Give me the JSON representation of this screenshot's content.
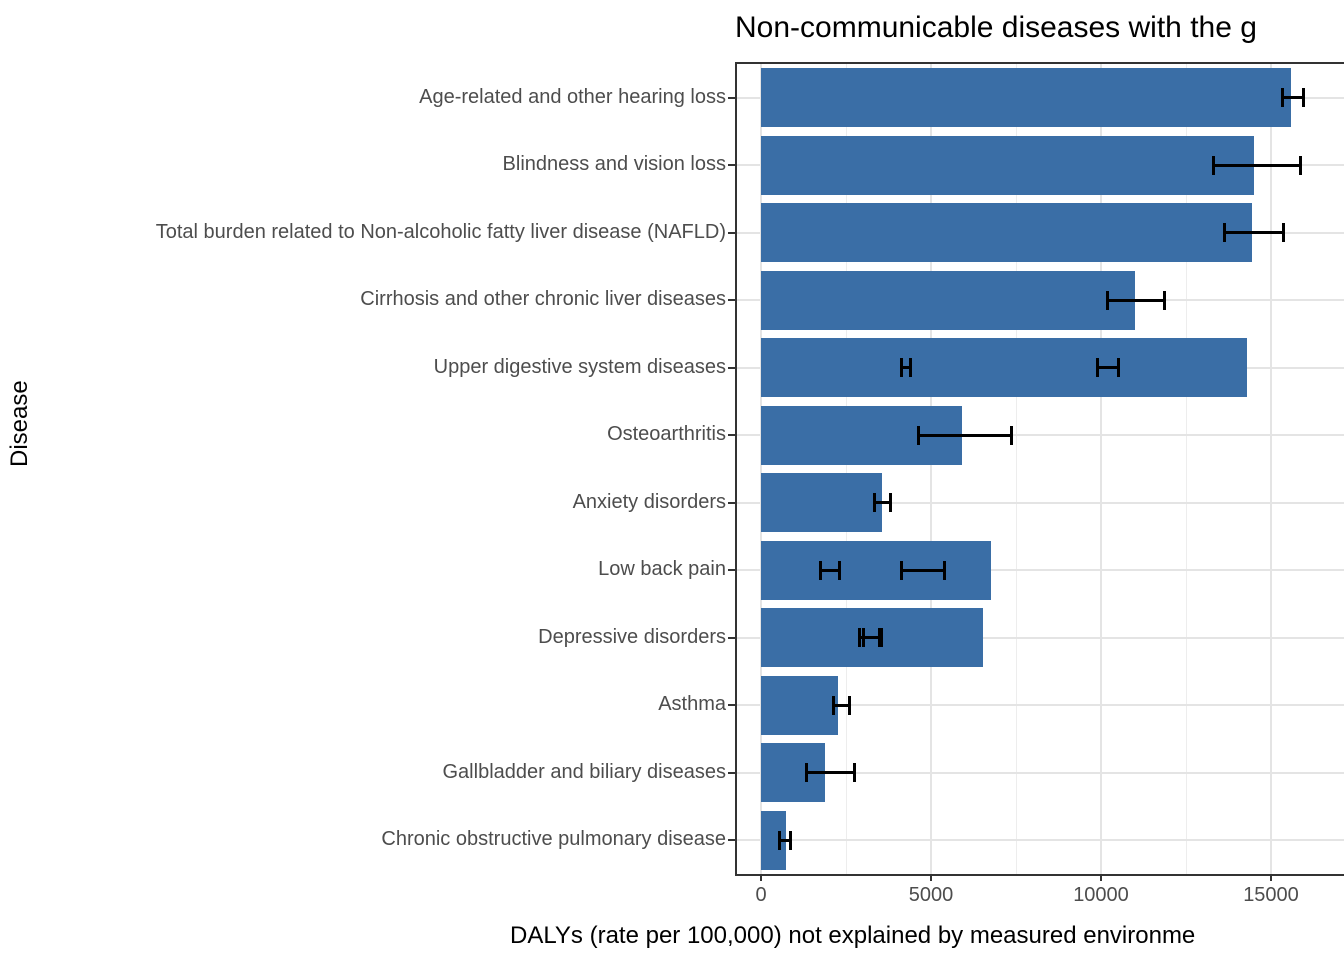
{
  "chart_data": {
    "type": "bar",
    "orientation": "horizontal",
    "title": "Non-communicable diseases with the g",
    "xlabel": "DALYs (rate per 100,000) not explained by measured environme",
    "ylabel": "Disease",
    "x_ticks": [
      0,
      5000,
      10000,
      15000
    ],
    "x_minor_gridlines": [
      2500,
      7500,
      12500,
      17500
    ],
    "xlim": [
      0,
      17500
    ],
    "grid": "major and minor vertical, major horizontal at category centers",
    "legend": "none",
    "bar_color": "#3a6ea6",
    "error_bar_color": "#000000",
    "categories": [
      "Age-related and other hearing loss",
      "Blindness and vision loss",
      "Total burden related to Non-alcoholic fatty liver disease (NAFLD)",
      "Cirrhosis and other chronic liver diseases",
      "Upper digestive system diseases",
      "Osteoarthritis",
      "Anxiety disorders",
      "Low back pain",
      "Depressive disorders",
      "Asthma",
      "Gallbladder and biliary diseases",
      "Chronic obstructive pulmonary disease"
    ],
    "values": [
      15600,
      14500,
      14450,
      11000,
      14300,
      5900,
      3560,
      6760,
      6530,
      2260,
      1880,
      740
    ],
    "error_bars": [
      [
        [
          15300,
          16000
        ]
      ],
      [
        [
          13250,
          15900
        ]
      ],
      [
        [
          13600,
          15400
        ]
      ],
      [
        [
          10150,
          11900
        ]
      ],
      [
        [
          4100,
          4430
        ],
        [
          9850,
          10550
        ]
      ],
      [
        [
          4600,
          7400
        ]
      ],
      [
        [
          3300,
          3840
        ]
      ],
      [
        [
          1700,
          2350
        ],
        [
          4100,
          5450
        ]
      ],
      [
        [
          2850,
          3530
        ],
        [
          2980,
          3600
        ]
      ],
      [
        [
          2080,
          2640
        ]
      ],
      [
        [
          1300,
          2790
        ]
      ],
      [
        [
          500,
          910
        ]
      ]
    ]
  }
}
